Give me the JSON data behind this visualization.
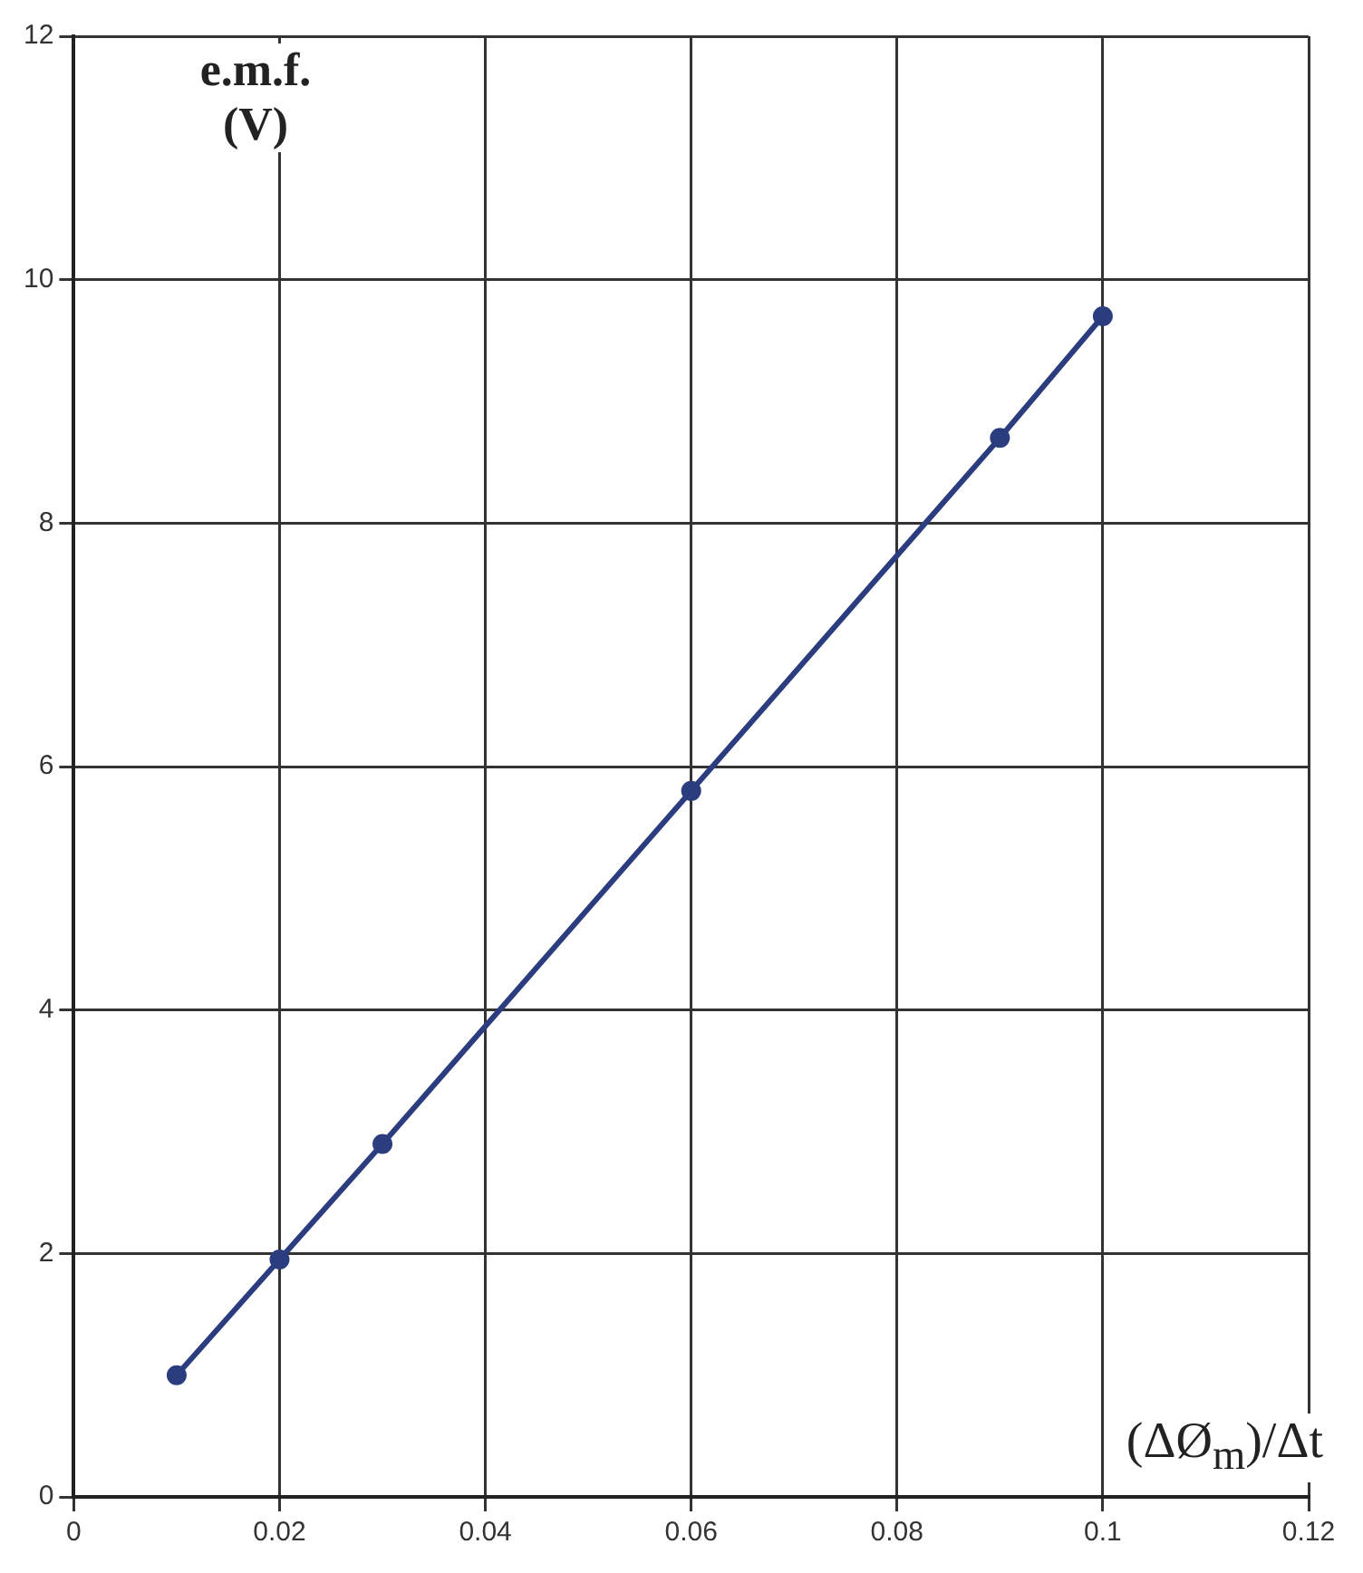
{
  "chart_data": {
    "type": "line",
    "xlabel": "(ΔØ$_{m}$)/Δt",
    "ylabel": "e.m.f. (V)",
    "x": [
      0.01,
      0.02,
      0.03,
      0.06,
      0.09,
      0.1
    ],
    "series": [
      {
        "color": "#2b3d7e",
        "values": [
          1,
          1.95,
          2.9,
          5.8,
          8.7,
          9.7
        ]
      }
    ],
    "xlim": [
      0,
      0.12
    ],
    "xticks": [
      0,
      0.02,
      0.04,
      0.06,
      0.08,
      0.1,
      0.12
    ],
    "ylim": [
      0,
      12
    ],
    "yticks": [
      0,
      2,
      4,
      6,
      8,
      10,
      12
    ],
    "grid": true,
    "marker": "circle",
    "line_style": "solid"
  }
}
